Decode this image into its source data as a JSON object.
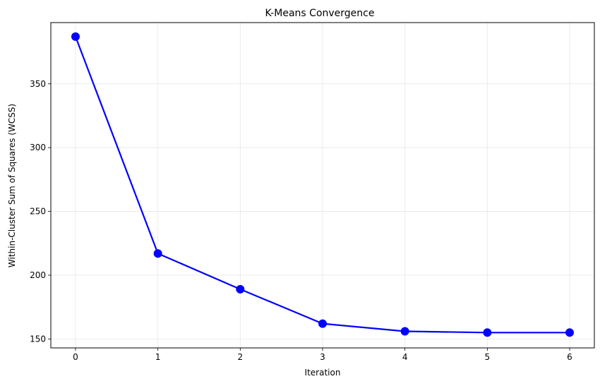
{
  "chart_data": {
    "type": "line",
    "title": "K-Means Convergence",
    "xlabel": "Iteration",
    "ylabel": "Within-Cluster Sum of Squares (WCSS)",
    "x": [
      0,
      1,
      2,
      3,
      4,
      5,
      6
    ],
    "series": [
      {
        "values": [
          387,
          217,
          189,
          162,
          156,
          155,
          155
        ],
        "color": "#0000ff",
        "marker": "circle"
      }
    ],
    "xlim": [
      -0.3,
      6.3
    ],
    "ylim": [
      143,
      398
    ],
    "xticks": [
      0,
      1,
      2,
      3,
      4,
      5,
      6
    ],
    "yticks": [
      150,
      200,
      250,
      300,
      350
    ],
    "grid": true,
    "legend": false
  }
}
